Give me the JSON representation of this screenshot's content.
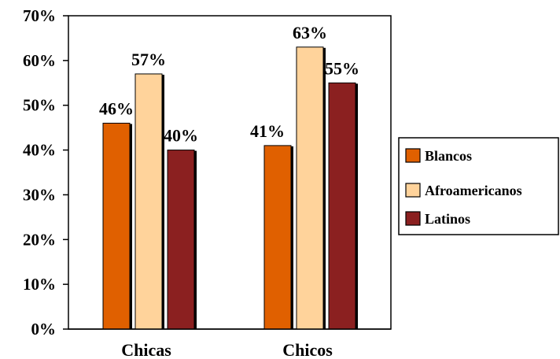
{
  "chart_data": {
    "type": "bar",
    "title": "",
    "xlabel": "",
    "ylabel": "",
    "categories": [
      "Chicas",
      "Chicos"
    ],
    "series": [
      {
        "name": "Blancos",
        "values": [
          46,
          41
        ],
        "color": "#e06000"
      },
      {
        "name": "Afroamericanos",
        "values": [
          57,
          63
        ],
        "color": "#ffd39b"
      },
      {
        "name": "Latinos",
        "values": [
          40,
          55
        ],
        "color": "#8b2020"
      }
    ],
    "value_labels": [
      [
        "46%",
        "41%"
      ],
      [
        "57%",
        "63%"
      ],
      [
        "40%",
        "55%"
      ]
    ],
    "ylim": [
      0,
      70
    ],
    "yticks": [
      0,
      10,
      20,
      30,
      40,
      50,
      60,
      70
    ],
    "ytick_labels": [
      "0%",
      "10%",
      "20%",
      "30%",
      "40%",
      "50%",
      "60%",
      "70%"
    ],
    "grid": false,
    "legend_position": "right"
  }
}
